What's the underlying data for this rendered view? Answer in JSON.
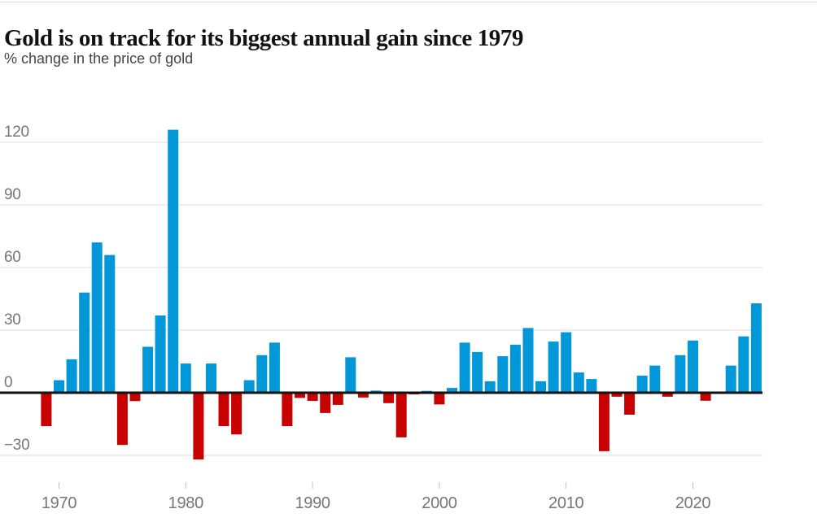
{
  "header": {
    "title": "Gold is on track for its biggest annual gain since 1979",
    "subtitle": "% change in the price of gold"
  },
  "chart_data": {
    "type": "bar",
    "title": "Gold is on track for its biggest annual gain since 1979",
    "subtitle": "% change in the price of gold",
    "xlabel": "",
    "ylabel": "% change in the price of gold",
    "x": [
      1969,
      1970,
      1971,
      1972,
      1973,
      1974,
      1975,
      1976,
      1977,
      1978,
      1979,
      1980,
      1981,
      1982,
      1983,
      1984,
      1985,
      1986,
      1987,
      1988,
      1989,
      1990,
      1991,
      1992,
      1993,
      1994,
      1995,
      1996,
      1997,
      1998,
      1999,
      2000,
      2001,
      2002,
      2003,
      2004,
      2005,
      2006,
      2007,
      2008,
      2009,
      2010,
      2011,
      2012,
      2013,
      2014,
      2015,
      2016,
      2017,
      2018,
      2019,
      2020,
      2021,
      2022,
      2023,
      2024,
      2025
    ],
    "values": [
      -16,
      6,
      16,
      48,
      72,
      66,
      -25,
      -4,
      22,
      37,
      126,
      14,
      -32,
      14,
      -16,
      -20,
      6,
      18,
      24,
      -16,
      -2.5,
      -3.9,
      -9.7,
      -5.8,
      17,
      -2.3,
      1,
      -5,
      -21.4,
      -0.8,
      0.9,
      -5.6,
      2.3,
      24,
      19.5,
      5.5,
      17.5,
      23,
      31,
      5.5,
      24.5,
      29,
      9.7,
      6.6,
      -28,
      -1.9,
      -10.5,
      8.2,
      13,
      -1.9,
      18,
      25,
      -3.8,
      -0.3,
      13,
      27,
      42.8
    ],
    "yticks": [
      120,
      90,
      60,
      30,
      0,
      -30
    ],
    "ytick_labels": [
      "120",
      "90",
      "60",
      "30",
      "0",
      "−30"
    ],
    "xticks": [
      1970,
      1980,
      1990,
      2000,
      2010,
      2020
    ],
    "xtick_labels": [
      "1970",
      "1980",
      "1990",
      "2000",
      "2010",
      "2020"
    ],
    "ylim": [
      -35,
      128
    ],
    "grid": true,
    "legend": false,
    "colors": {
      "positive": "#0098d8",
      "negative": "#c70000",
      "gridline": "#dcdcdc",
      "zero_line": "#121212",
      "axis_text": "#767676",
      "tick_mark": "#bdbdbd"
    }
  }
}
